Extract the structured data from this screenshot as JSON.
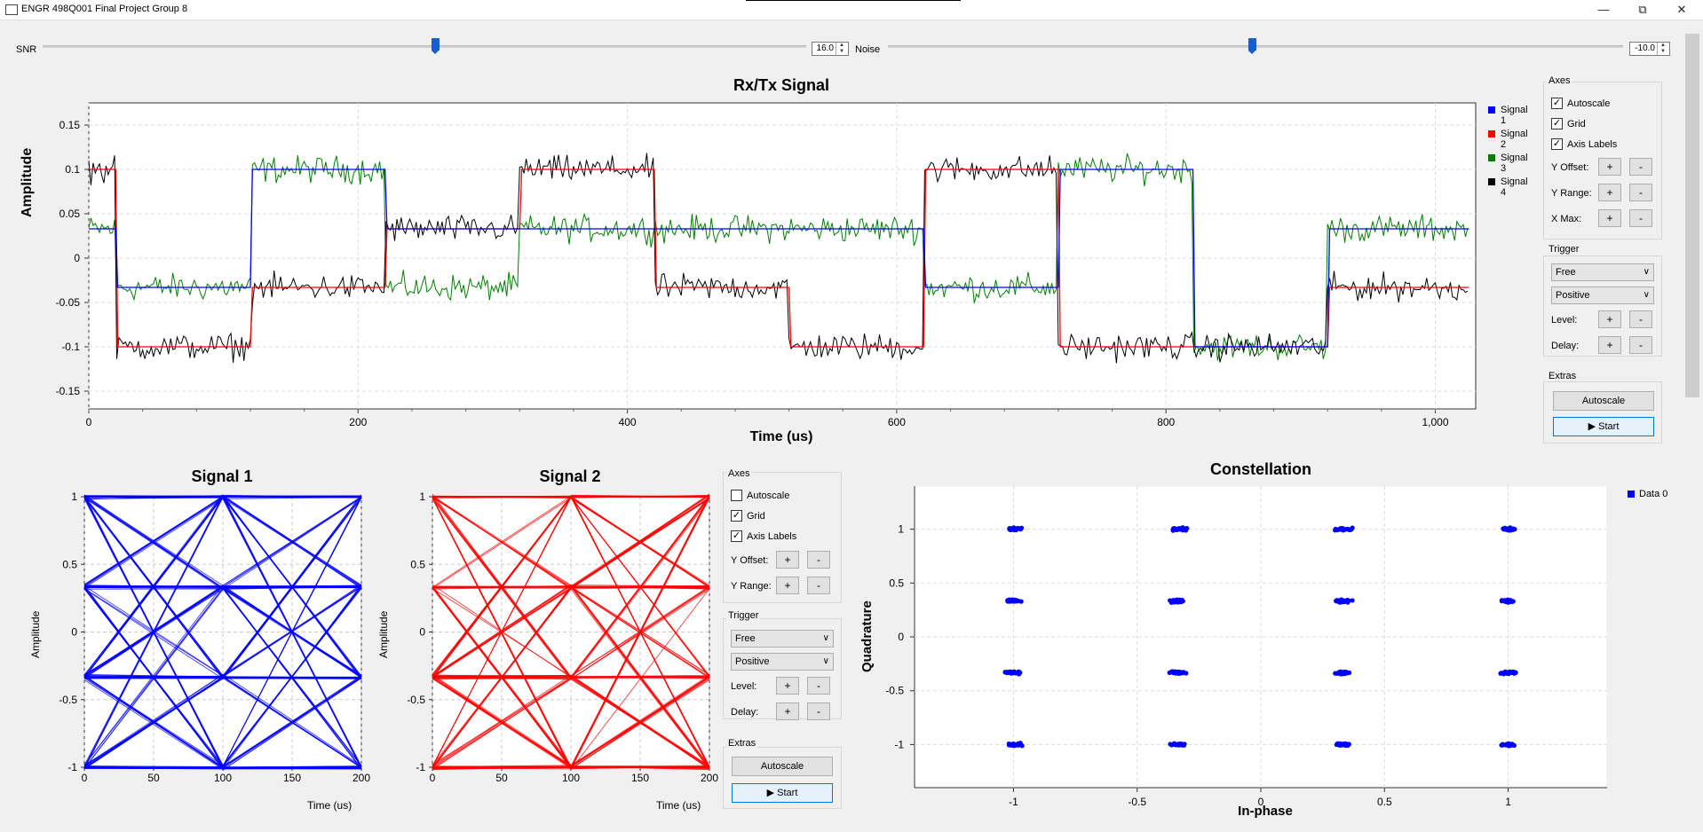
{
  "window": {
    "title": "ENGR 498Q001 Final Project Group 8",
    "minimize": "—",
    "maximize": "⧉",
    "close": "✕"
  },
  "controls": {
    "snr": {
      "label": "SNR",
      "value": "16.0",
      "fraction": 0.5
    },
    "noise": {
      "label": "Noise",
      "value": "-10.0",
      "fraction": 0.5
    }
  },
  "main_chart": {
    "title": "Rx/Tx Signal",
    "xlabel": "Time (us)",
    "ylabel": "Amplitude",
    "legend": [
      "Signal 1",
      "Signal 2",
      "Signal 3",
      "Signal 4"
    ],
    "colors": [
      "#0000ff",
      "#ff0000",
      "#008000",
      "#000000"
    ],
    "xticks": [
      "0",
      "200",
      "400",
      "600",
      "800",
      "1,000"
    ],
    "yticks": [
      "0.15",
      "0.1",
      "0.05",
      "0",
      "-0.05",
      "-0.1",
      "-0.15"
    ]
  },
  "right_panel": {
    "axes_title": "Axes",
    "autoscale": "Autoscale",
    "grid": "Grid",
    "axis_labels": "Axis Labels",
    "y_offset": "Y Offset:",
    "y_range": "Y Range:",
    "x_max": "X Max:",
    "plus": "+",
    "minus": "-",
    "trigger_title": "Trigger",
    "trigger_mode": "Free",
    "trigger_slope": "Positive",
    "level": "Level:",
    "delay": "Delay:",
    "extras_title": "Extras",
    "autoscale_btn": "Autoscale",
    "start_btn": "▶ Start"
  },
  "eye1": {
    "title": "Signal 1",
    "ylabel": "Amplitude",
    "xlabel": "Time (us)",
    "color": "#0000ff",
    "xticks": [
      "0",
      "50",
      "100",
      "150",
      "200"
    ],
    "yticks": [
      "1",
      "0.5",
      "0",
      "-0.5",
      "-1"
    ]
  },
  "eye2": {
    "title": "Signal 2",
    "ylabel": "Amplitude",
    "xlabel": "Time (us)",
    "color": "#ff0000",
    "xticks": [
      "0",
      "50",
      "100",
      "150",
      "200"
    ],
    "yticks": [
      "1",
      "0.5",
      "0",
      "-0.5",
      "-1"
    ]
  },
  "mid_panel": {
    "axes_title": "Axes",
    "autoscale": "Autoscale",
    "grid": "Grid",
    "axis_labels": "Axis Labels",
    "y_offset": "Y Offset:",
    "y_range": "Y Range:",
    "plus": "+",
    "minus": "-",
    "trigger_title": "Trigger",
    "trigger_mode": "Free",
    "trigger_slope": "Positive",
    "level": "Level:",
    "delay": "Delay:",
    "extras_title": "Extras",
    "autoscale_btn": "Autoscale",
    "start_btn": "▶ Start"
  },
  "constellation": {
    "title": "Constellation",
    "xlabel": "In-phase",
    "ylabel": "Quadrature",
    "legend": "Data 0",
    "color": "#0000ff",
    "xticks": [
      "-1",
      "-0.5",
      "0",
      "0.5",
      "1"
    ],
    "yticks": [
      "1",
      "0.5",
      "0",
      "-0.5",
      "-1"
    ]
  },
  "chart_data": [
    {
      "type": "line",
      "title": "Rx/Tx Signal",
      "xlabel": "Time (us)",
      "ylabel": "Amplitude",
      "xlim": [
        0,
        1030
      ],
      "ylim": [
        -0.17,
        0.175
      ],
      "grid": true,
      "legend_position": "right",
      "symbol_period_us": 100,
      "series": [
        {
          "name": "Signal 1",
          "symbol_values": [
            0.033,
            -0.033,
            0.1,
            0.033,
            0.033,
            0.033,
            0.033,
            -0.033,
            0.1,
            -0.1,
            0.033
          ],
          "start_x": 20
        },
        {
          "name": "Signal 2",
          "symbol_values": [
            0.1,
            -0.1,
            -0.033,
            0.033,
            0.1,
            -0.033,
            -0.1,
            0.1,
            -0.1,
            -0.1,
            -0.033
          ],
          "start_x": 20
        },
        {
          "name": "Signal 3",
          "symbol_values": [
            0.033,
            -0.033,
            0.1,
            -0.033,
            0.033,
            0.033,
            0.033,
            -0.033,
            0.1,
            -0.1,
            0.033
          ],
          "start_x": 20,
          "noisy": true
        },
        {
          "name": "Signal 4",
          "symbol_values": [
            0.1,
            -0.1,
            -0.033,
            0.033,
            0.1,
            -0.033,
            -0.1,
            0.1,
            -0.1,
            -0.1,
            -0.033
          ],
          "start_x": 20,
          "noisy": true
        }
      ]
    },
    {
      "type": "line",
      "title": "Signal 1",
      "xlabel": "Time (us)",
      "ylabel": "Amplitude",
      "xlim": [
        0,
        200
      ],
      "ylim": [
        -1,
        1
      ],
      "levels": [
        -1,
        -0.333,
        0.333,
        1
      ],
      "grid": true
    },
    {
      "type": "line",
      "title": "Signal 2",
      "xlabel": "Time (us)",
      "ylabel": "Amplitude",
      "xlim": [
        0,
        200
      ],
      "ylim": [
        -1,
        1
      ],
      "levels": [
        -1,
        -0.333,
        0.333,
        1
      ],
      "grid": true
    },
    {
      "type": "scatter",
      "title": "Constellation",
      "xlabel": "In-phase",
      "ylabel": "Quadrature",
      "xlim": [
        -1.4,
        1.4
      ],
      "ylim": [
        -1.4,
        1.4
      ],
      "grid": true,
      "legend_position": "top-right",
      "series": [
        {
          "name": "Data 0",
          "points": [
            [
              -1,
              1
            ],
            [
              -0.333,
              1
            ],
            [
              0.333,
              1
            ],
            [
              1,
              1
            ],
            [
              -1,
              0.333
            ],
            [
              -0.333,
              0.333
            ],
            [
              0.333,
              0.333
            ],
            [
              1,
              0.333
            ],
            [
              -1,
              -0.333
            ],
            [
              -0.333,
              -0.333
            ],
            [
              0.333,
              -0.333
            ],
            [
              1,
              -0.333
            ],
            [
              -1,
              -1
            ],
            [
              -0.333,
              -1
            ],
            [
              0.333,
              -1
            ],
            [
              1,
              -1
            ]
          ]
        }
      ]
    }
  ]
}
